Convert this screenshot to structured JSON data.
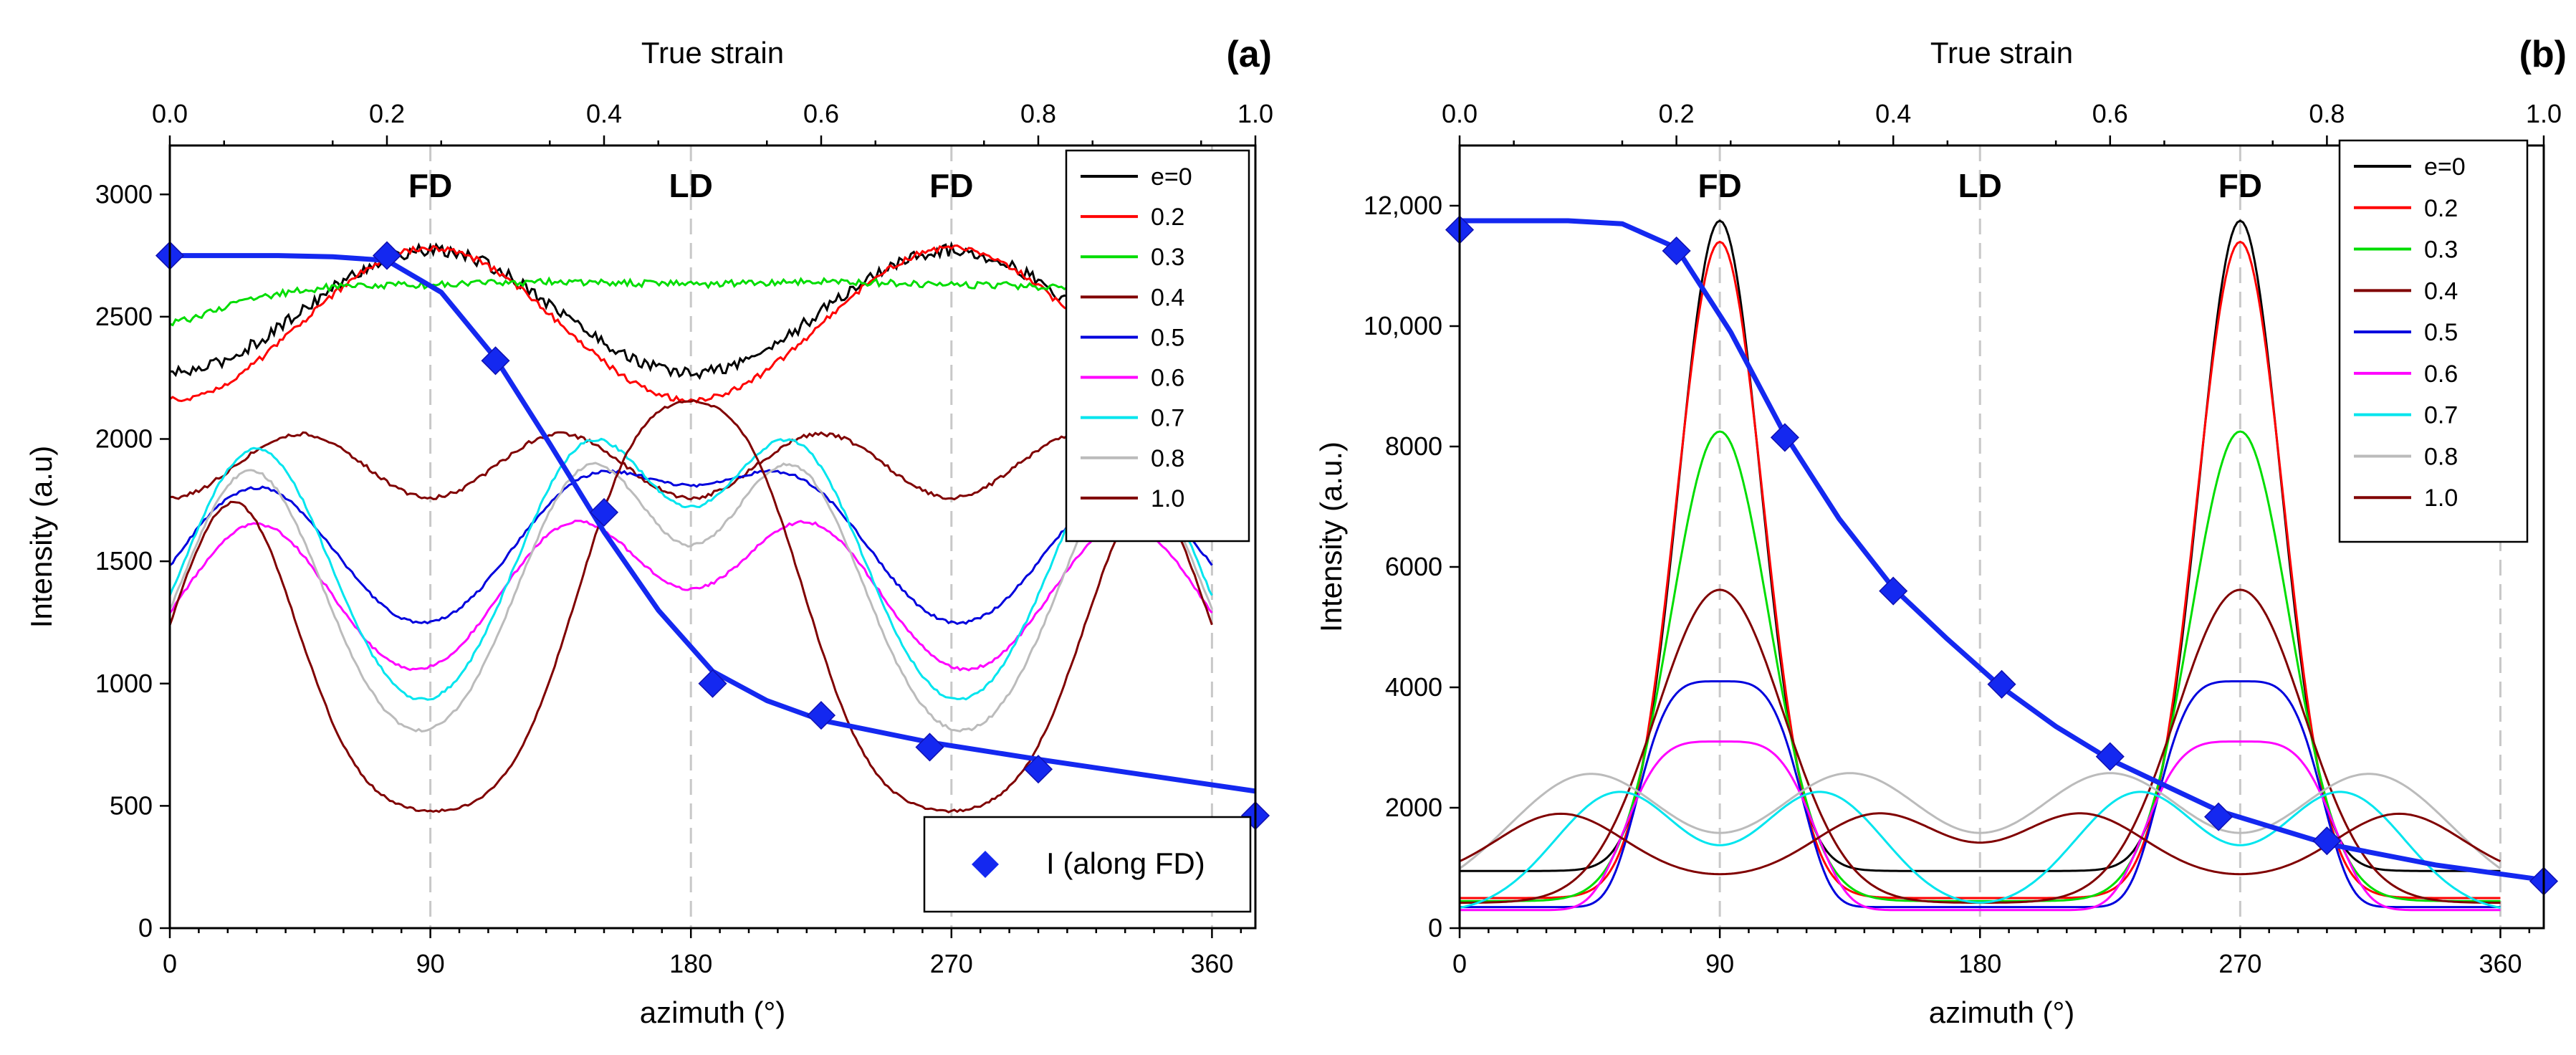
{
  "chart_data": [
    {
      "type": "line",
      "panel_label": "(a)",
      "xlabel": "azimuth (°)",
      "ylabel": "Intensity (a.u)",
      "top_axis_label": "True strain",
      "xlim": [
        0,
        360
      ],
      "ylim": [
        0,
        3200
      ],
      "top_lim": [
        0,
        1.0
      ],
      "xticks": [
        "0",
        "90",
        "180",
        "270",
        "360"
      ],
      "yticks": [
        "0",
        "500",
        "1000",
        "1500",
        "2000",
        "2500",
        "3000"
      ],
      "top_ticks": [
        "0.0",
        "0.2",
        "0.4",
        "0.6",
        "0.8",
        "1.0"
      ],
      "direction_labels": [
        {
          "text": "FD",
          "x": 90
        },
        {
          "text": "LD",
          "x": 180
        },
        {
          "text": "FD",
          "x": 270
        }
      ],
      "legend": [
        "e=0",
        "0.2",
        "0.3",
        "0.4",
        "0.5",
        "0.6",
        "0.7",
        "0.8",
        "1.0"
      ],
      "legend_position": "top-right",
      "series": [
        {
          "name": "e=0",
          "color": "#000000",
          "shape": "cos2",
          "mean": 2520,
          "amp": 250,
          "noise": 25
        },
        {
          "name": "0.2",
          "color": "#ff0000",
          "shape": "cos2",
          "mean": 2470,
          "amp": 310,
          "noise": 12
        },
        {
          "name": "0.3",
          "color": "#00dd00",
          "shape": "pair",
          "centers": [
            45,
            135,
            225,
            315
          ],
          "base": 2300,
          "amp": 270,
          "width": 45,
          "noise": 14
        },
        {
          "name": "0.4",
          "color": "#800000",
          "shape": "cos4",
          "mean": 1890,
          "amp": 130,
          "noise": 8
        },
        {
          "name": "0.5",
          "color": "#0000dd",
          "shape": "pair",
          "centers": [
            30,
            145,
            215,
            330
          ],
          "base": 990,
          "amp": 810,
          "width": 30,
          "noise": 6
        },
        {
          "name": "0.6",
          "color": "#ff00ff",
          "shape": "pair",
          "centers": [
            30,
            140,
            220,
            330
          ],
          "base": 860,
          "amp": 790,
          "width": 27,
          "noise": 6
        },
        {
          "name": "0.7",
          "color": "#00e5ee",
          "shape": "pair",
          "centers": [
            30,
            145,
            215,
            330
          ],
          "base": 720,
          "amp": 1240,
          "width": 26,
          "noise": 6
        },
        {
          "name": "0.8",
          "color": "#bbbbbb",
          "shape": "pair",
          "centers": [
            28,
            145,
            215,
            332
          ],
          "base": 650,
          "amp": 1220,
          "width": 25,
          "noise": 6
        },
        {
          "name": "1.0",
          "color": "#800000",
          "shape": "pair",
          "centers": [
            22,
            160,
            200,
            338
          ],
          "base": 460,
          "amp": 1280,
          "width": 22,
          "noise": 5
        }
      ],
      "fd_series": {
        "name": "I (along FD)",
        "color": "#1428f0",
        "points": [
          [
            0.0,
            2750
          ],
          [
            0.2,
            2750
          ],
          [
            0.3,
            2320
          ],
          [
            0.4,
            1700
          ],
          [
            0.5,
            1000
          ],
          [
            0.6,
            870
          ],
          [
            0.7,
            740
          ],
          [
            0.8,
            650
          ],
          [
            1.0,
            460
          ]
        ],
        "fit": [
          [
            0.0,
            2750
          ],
          [
            0.1,
            2750
          ],
          [
            0.15,
            2745
          ],
          [
            0.2,
            2730
          ],
          [
            0.25,
            2600
          ],
          [
            0.3,
            2330
          ],
          [
            0.35,
            1980
          ],
          [
            0.4,
            1620
          ],
          [
            0.45,
            1300
          ],
          [
            0.5,
            1050
          ],
          [
            0.55,
            930
          ],
          [
            0.6,
            850
          ],
          [
            0.7,
            760
          ],
          [
            0.8,
            690
          ],
          [
            0.9,
            625
          ],
          [
            1.0,
            560
          ]
        ]
      }
    },
    {
      "type": "line",
      "panel_label": "(b)",
      "xlabel": "azimuth (°)",
      "ylabel": "Intensity (a.u.)",
      "top_axis_label": "True strain",
      "xlim": [
        0,
        360
      ],
      "ylim": [
        0,
        13000
      ],
      "top_lim": [
        0,
        1.0
      ],
      "xticks": [
        "0",
        "90",
        "180",
        "270",
        "360"
      ],
      "yticks": [
        "0",
        "2000",
        "4000",
        "6000",
        "8000",
        "10,000",
        "12,000"
      ],
      "top_ticks": [
        "0.0",
        "0.2",
        "0.4",
        "0.6",
        "0.8",
        "1.0"
      ],
      "direction_labels": [
        {
          "text": "FD",
          "x": 90
        },
        {
          "text": "LD",
          "x": 180
        },
        {
          "text": "FD",
          "x": 270
        }
      ],
      "legend": [
        "e=0",
        "0.2",
        "0.3",
        "0.4",
        "0.5",
        "0.6",
        "0.7",
        "0.8",
        "1.0"
      ],
      "legend_position": "top-right",
      "series": [
        {
          "name": "e=0",
          "color": "#000000",
          "shape": "peak",
          "base": 950,
          "amp": 10800,
          "width": 14,
          "noise": 0
        },
        {
          "name": "0.2",
          "color": "#ff0000",
          "shape": "peak",
          "base": 500,
          "amp": 10900,
          "width": 15,
          "noise": 0
        },
        {
          "name": "0.3",
          "color": "#00dd00",
          "shape": "peak",
          "base": 450,
          "amp": 7800,
          "width": 17,
          "noise": 0
        },
        {
          "name": "0.4",
          "color": "#800000",
          "shape": "peak",
          "base": 420,
          "amp": 5200,
          "width": 22,
          "noise": 0
        },
        {
          "name": "0.5",
          "color": "#0000dd",
          "shape": "flatpeak",
          "base": 350,
          "amp": 3750,
          "width": 26,
          "noise": 0
        },
        {
          "name": "0.6",
          "color": "#ff00ff",
          "shape": "flatpeak",
          "base": 300,
          "amp": 2800,
          "width": 30,
          "noise": 0
        },
        {
          "name": "0.7",
          "color": "#00e5ee",
          "shape": "pair",
          "centers": [
            55,
            125,
            235,
            305
          ],
          "base": 250,
          "amp": 2000,
          "width": 22,
          "noise": 0
        },
        {
          "name": "0.8",
          "color": "#bbbbbb",
          "shape": "pair",
          "centers": [
            45,
            135,
            225,
            315
          ],
          "base": 400,
          "amp": 2150,
          "width": 28,
          "noise": 0
        },
        {
          "name": "1.0",
          "color": "#800000",
          "shape": "pair",
          "centers": [
            35,
            145,
            215,
            325
          ],
          "base": 800,
          "amp": 1100,
          "width": 22,
          "noise": 0
        }
      ],
      "fd_series": {
        "name": "",
        "color": "#1428f0",
        "points": [
          [
            0.0,
            11600
          ],
          [
            0.2,
            11250
          ],
          [
            0.3,
            8150
          ],
          [
            0.4,
            5600
          ],
          [
            0.5,
            4050
          ],
          [
            0.6,
            2850
          ],
          [
            0.7,
            1850
          ],
          [
            0.8,
            1450
          ],
          [
            1.0,
            780
          ]
        ],
        "fit": [
          [
            0.0,
            11750
          ],
          [
            0.1,
            11750
          ],
          [
            0.15,
            11700
          ],
          [
            0.2,
            11300
          ],
          [
            0.25,
            9900
          ],
          [
            0.3,
            8200
          ],
          [
            0.35,
            6800
          ],
          [
            0.4,
            5650
          ],
          [
            0.45,
            4800
          ],
          [
            0.5,
            4000
          ],
          [
            0.55,
            3350
          ],
          [
            0.6,
            2800
          ],
          [
            0.7,
            1950
          ],
          [
            0.8,
            1400
          ],
          [
            0.9,
            1050
          ],
          [
            1.0,
            800
          ]
        ]
      }
    }
  ]
}
